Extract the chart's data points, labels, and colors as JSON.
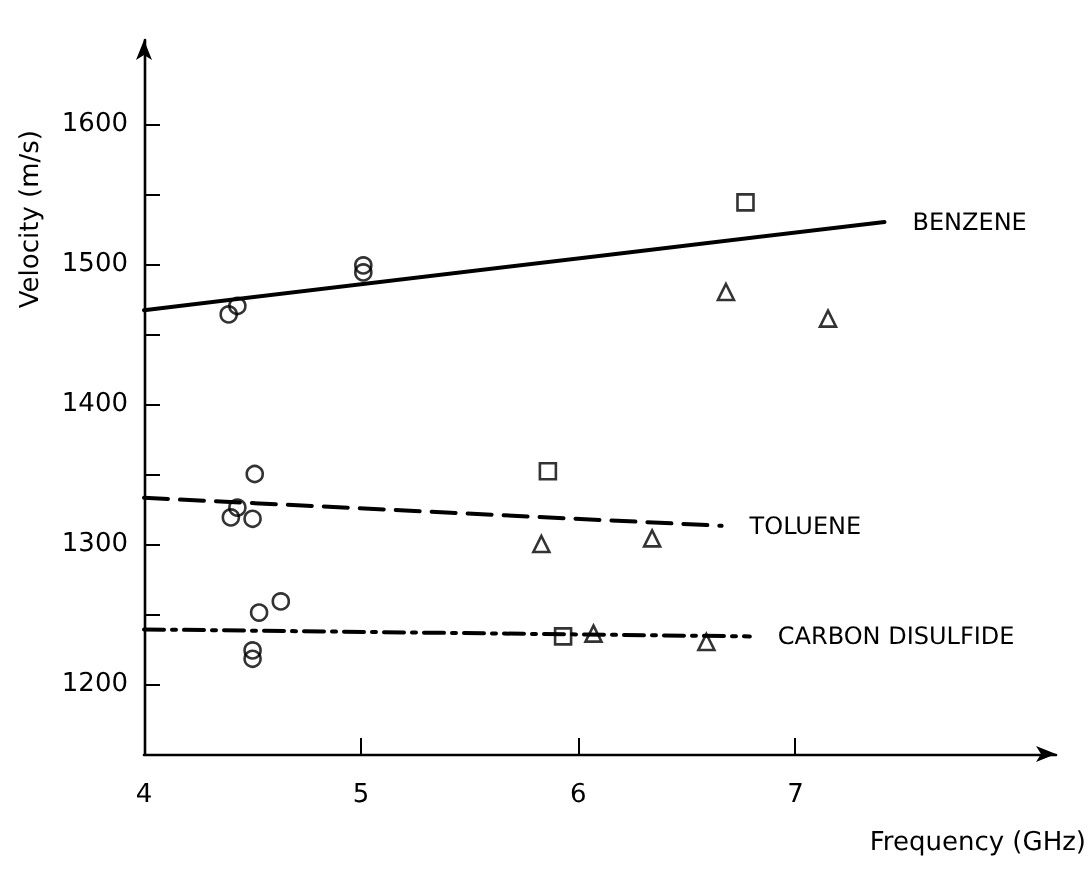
{
  "chart_data": {
    "type": "scatter",
    "xlabel": "Frequency (GHz)",
    "ylabel": "Velocity (m/s)",
    "xlim": [
      4,
      8.2
    ],
    "xticks": [
      4,
      5,
      6,
      7
    ],
    "ylim": [
      1150,
      1660
    ],
    "yticks": [
      1200,
      {
        "value": 1250,
        "label": null
      },
      1300,
      {
        "value": 1350,
        "label": null
      },
      1400,
      {
        "value": 1450,
        "label": null
      },
      1500,
      {
        "value": 1550,
        "label": null
      },
      1600
    ],
    "grid": false,
    "legend": false,
    "series": [
      {
        "type": "line",
        "name": "BENZENE",
        "color": "#000000",
        "line_style": "solid",
        "marker": "none",
        "x": [
          4,
          7.41
        ],
        "values": [
          1467,
          1530
        ]
      },
      {
        "type": "line",
        "name": "TOLUENE",
        "color": "#000000",
        "line_style": "dashed",
        "marker": "none",
        "x": [
          4,
          6.66
        ],
        "values": [
          1333,
          1313
        ]
      },
      {
        "type": "line",
        "name": "CARBON DISULFIDE",
        "color": "#000000",
        "line_style": "dashdot",
        "marker": "none",
        "x": [
          4,
          6.79
        ],
        "values": [
          1239,
          1234
        ]
      },
      {
        "type": "scatter",
        "color": "#000000",
        "marker": "circle",
        "x": [
          4.39,
          4.43,
          5.01,
          5.01,
          4.4,
          4.43,
          4.5,
          4.51,
          4.53,
          4.63,
          4.5,
          4.5
        ],
        "values": [
          1464,
          1470,
          1499,
          1494,
          1319,
          1326,
          1318,
          1350,
          1251,
          1259,
          1224,
          1218
        ]
      },
      {
        "type": "scatter",
        "color": "#000000",
        "marker": "square",
        "x": [
          6.77,
          5.86,
          5.93
        ],
        "values": [
          1544,
          1352,
          1234
        ]
      },
      {
        "type": "scatter",
        "color": "#000000",
        "marker": "triangle",
        "x": [
          6.68,
          7.15,
          5.83,
          6.34,
          6.07,
          6.59
        ],
        "values": [
          1480,
          1461,
          1300,
          1304,
          1236,
          1230
        ]
      }
    ]
  }
}
